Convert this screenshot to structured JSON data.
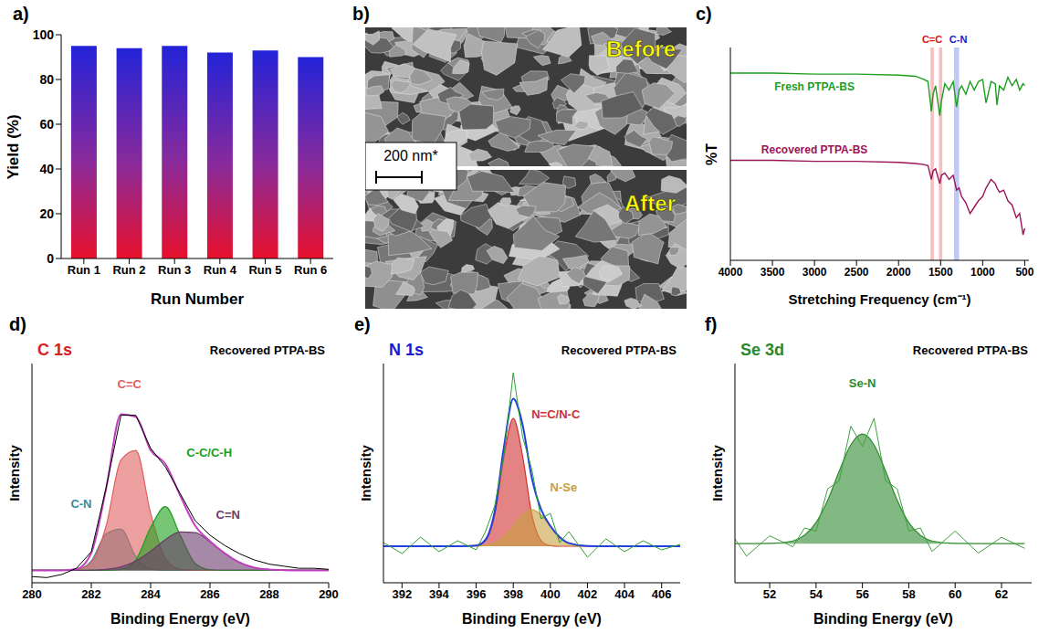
{
  "chart_data": [
    {
      "panel": "a)",
      "type": "bar",
      "categories": [
        "Run 1",
        "Run 2",
        "Run 3",
        "Run 4",
        "Run 5",
        "Run 6"
      ],
      "values": [
        95,
        94,
        95,
        92,
        93,
        90
      ],
      "color": "#2323d8",
      "ylim": [
        0,
        100
      ],
      "yticks": [
        0,
        20,
        40,
        60,
        80,
        100
      ],
      "x_label": "Run Number",
      "y_label": "Yield (%)"
    },
    {
      "panel": "b)",
      "type": "image",
      "labels": [
        "Before",
        "After"
      ],
      "scale_bar": "200 nm*"
    },
    {
      "panel": "c)",
      "type": "line",
      "x_label": "Stretching Frequency (cm⁻¹)",
      "y_label": "%T",
      "x": [
        4000,
        3500,
        3000,
        2500,
        2000,
        1800,
        1700,
        1650,
        1610,
        1590,
        1560,
        1510,
        1490,
        1450,
        1400,
        1350,
        1310,
        1280,
        1250,
        1200,
        1150,
        1100,
        1050,
        1000,
        960,
        900,
        850,
        830,
        800,
        750,
        700,
        650,
        600,
        560,
        520,
        500
      ],
      "xlim": [
        4000,
        450
      ],
      "xticks": [
        4000,
        3500,
        3000,
        2500,
        2000,
        1500,
        1000,
        500
      ],
      "ylim": [
        0,
        1
      ],
      "tick_labels": "x",
      "series": [
        {
          "name": "Fresh PTPA-BS",
          "color": "#1e9e1e",
          "values": [
            0.88,
            0.88,
            0.875,
            0.875,
            0.87,
            0.865,
            0.85,
            0.84,
            0.7,
            0.78,
            0.82,
            0.68,
            0.75,
            0.83,
            0.8,
            0.84,
            0.72,
            0.8,
            0.82,
            0.78,
            0.84,
            0.8,
            0.84,
            0.85,
            0.74,
            0.84,
            0.83,
            0.73,
            0.82,
            0.8,
            0.86,
            0.82,
            0.85,
            0.8,
            0.83,
            0.82
          ]
        },
        {
          "name": "Recovered PTPA-BS",
          "color": "#9c1458",
          "values": [
            0.47,
            0.47,
            0.465,
            0.465,
            0.46,
            0.455,
            0.45,
            0.445,
            0.38,
            0.42,
            0.43,
            0.36,
            0.4,
            0.41,
            0.38,
            0.4,
            0.33,
            0.34,
            0.3,
            0.27,
            0.22,
            0.25,
            0.28,
            0.3,
            0.34,
            0.38,
            0.36,
            0.34,
            0.32,
            0.33,
            0.28,
            0.26,
            0.2,
            0.22,
            0.12,
            0.15
          ]
        }
      ],
      "bands": [
        {
          "from": 1620,
          "to": 1580,
          "color": "#f08a8a"
        },
        {
          "from": 1520,
          "to": 1480,
          "color": "#f08a8a"
        },
        {
          "from": 1340,
          "to": 1280,
          "color": "#8a9af0"
        }
      ],
      "annotations": [
        {
          "text": "C=C",
          "x": 1600,
          "color": "#e01010"
        },
        {
          "text": "C-N",
          "x": 1290,
          "color": "#1a1ad0"
        }
      ]
    },
    {
      "panel": "d)",
      "type": "area",
      "title": "C 1s",
      "subtitle": "Recovered PTPA-BS",
      "color": "#d62020",
      "x_label": "Binding Energy (eV)",
      "y_label": "Intensity",
      "x": [
        280,
        280.5,
        281,
        281.5,
        282,
        282.5,
        283,
        283.5,
        284,
        284.5,
        285,
        285.5,
        286,
        286.5,
        287,
        287.5,
        288,
        288.5,
        289,
        289.5,
        290
      ],
      "xlim": [
        280,
        290
      ],
      "xticks": [
        280,
        282,
        284,
        286,
        288,
        290
      ],
      "ylim": [
        -6,
        100
      ],
      "tick_labels": "x",
      "series": [
        {
          "name": "C-N",
          "type": "area",
          "color": "#3a8a9a",
          "values": [
            0,
            0,
            0,
            0.3,
            4.5,
            17.6,
            19.9,
            6.6,
            0.6,
            0,
            0,
            0,
            0,
            0,
            0,
            0,
            0,
            0,
            0,
            0,
            0
          ]
        },
        {
          "name": "C=C",
          "type": "area",
          "color": "#e06060",
          "values": [
            0,
            0,
            0,
            0.3,
            3.8,
            21.5,
            53.4,
            58.0,
            27.6,
            5.7,
            0.5,
            0,
            0,
            0,
            0,
            0,
            0,
            0,
            0,
            0,
            0
          ]
        },
        {
          "name": "C-C/C-H",
          "type": "area",
          "color": "#1aa01a",
          "values": [
            0,
            0,
            0,
            0,
            0,
            0,
            0.5,
            5.1,
            20.7,
            30.8,
            16.9,
            3.4,
            0.3,
            0,
            0,
            0,
            0,
            0,
            0,
            0,
            0
          ]
        },
        {
          "name": "C=N",
          "type": "area",
          "color": "#6a3a6a",
          "values": [
            0,
            0,
            0,
            0,
            0.1,
            0.5,
            1.7,
            4.5,
            9.2,
            14.9,
            18.6,
            18.2,
            13.8,
            8.2,
            3.8,
            1.3,
            0.4,
            0.1,
            0,
            0,
            0
          ]
        },
        {
          "type": "line",
          "line_style": "solid",
          "color": "#c040c0",
          "values": [
            0,
            0,
            0,
            0.6,
            8.4,
            39.6,
            75.5,
            74.2,
            58.1,
            51.4,
            36.0,
            21.6,
            14.1,
            8.2,
            3.8,
            1.3,
            0.4,
            0.1,
            0,
            0,
            0
          ]
        },
        {
          "type": "line",
          "line_style": "thin",
          "color": "#000000",
          "values": [
            -3,
            -3.5,
            -2,
            1,
            9,
            40,
            75,
            75,
            59,
            50,
            37,
            24,
            17,
            12,
            8,
            5,
            3,
            2,
            1,
            1,
            0.5
          ]
        }
      ]
    },
    {
      "panel": "e)",
      "type": "area",
      "title": "N 1s",
      "subtitle": "Recovered PTPA-BS",
      "color": "#1a1ad0",
      "x_label": "Binding Energy (eV)",
      "y_label": "Intensity",
      "x": [
        391,
        392,
        393,
        394,
        395,
        396,
        396.5,
        397,
        397.5,
        398,
        398.5,
        399,
        399.5,
        400,
        400.5,
        401,
        402,
        403,
        404,
        405,
        406,
        407
      ],
      "xlim": [
        391,
        407
      ],
      "xticks": [
        392,
        394,
        396,
        398,
        400,
        402,
        404,
        406
      ],
      "ylim": [
        -20,
        100
      ],
      "tick_labels": "x",
      "series": [
        {
          "name": "N=C/N-C",
          "type": "area",
          "color": "#d03030",
          "values": [
            0,
            0,
            0,
            0,
            0,
            0.3,
            3.1,
            17.4,
            49.5,
            70,
            49.5,
            17.4,
            3.1,
            0.3,
            0,
            0,
            0,
            0,
            0,
            0,
            0,
            0
          ]
        },
        {
          "name": "N-Se",
          "type": "area",
          "color": "#c8a040",
          "values": [
            0,
            0,
            0,
            0,
            0,
            0.1,
            0.4,
            1.7,
            5.0,
            10.8,
            17.1,
            20,
            17.1,
            10.8,
            5.0,
            1.7,
            0.1,
            0,
            0,
            0,
            0,
            0
          ]
        },
        {
          "type": "line",
          "line_style": "solid",
          "color": "#2040e0",
          "values": [
            0,
            0,
            0,
            0,
            0,
            0.4,
            3.5,
            19.1,
            54.5,
            80.8,
            66.6,
            37.4,
            20.2,
            11.1,
            5.0,
            1.7,
            0.1,
            0,
            0,
            0,
            0,
            0
          ]
        },
        {
          "type": "line",
          "line_style": "thin",
          "color": "#30a030",
          "values": [
            2,
            -4,
            5,
            -3,
            3,
            -2,
            8,
            22,
            50,
            95,
            60,
            42,
            15,
            18,
            2,
            8,
            -6,
            4,
            -3,
            3,
            -2,
            1
          ]
        }
      ]
    },
    {
      "panel": "f)",
      "type": "area",
      "title": "Se 3d",
      "subtitle": "Recovered PTPA-BS",
      "color": "#2a8a2a",
      "x_label": "Binding Energy (eV)",
      "y_label": "Intensity",
      "x": [
        50.5,
        51,
        52,
        53,
        53.5,
        54,
        54.5,
        55,
        55.5,
        56,
        56.5,
        57,
        57.5,
        58,
        58.5,
        59,
        60,
        61,
        62,
        63
      ],
      "xlim": [
        50.5,
        63.3
      ],
      "xticks": [
        52,
        54,
        56,
        58,
        60,
        62
      ],
      "ylim": [
        -25,
        115
      ],
      "tick_labels": "x",
      "series": [
        {
          "name": "Se-N",
          "type": "area",
          "color": "#2e8b2e",
          "values": [
            0,
            0,
            0.1,
            1.7,
            5.3,
            13.4,
            27.6,
            46.3,
            63.1,
            70,
            63.1,
            46.3,
            27.6,
            13.4,
            5.3,
            1.7,
            0.1,
            0,
            0,
            0
          ]
        },
        {
          "type": "line",
          "line_style": "thin",
          "color": "#40a040",
          "values": [
            3,
            -8,
            5,
            -2,
            10,
            8,
            35,
            40,
            75,
            62,
            80,
            40,
            35,
            8,
            10,
            -5,
            8,
            -6,
            4,
            -3
          ]
        }
      ]
    }
  ]
}
